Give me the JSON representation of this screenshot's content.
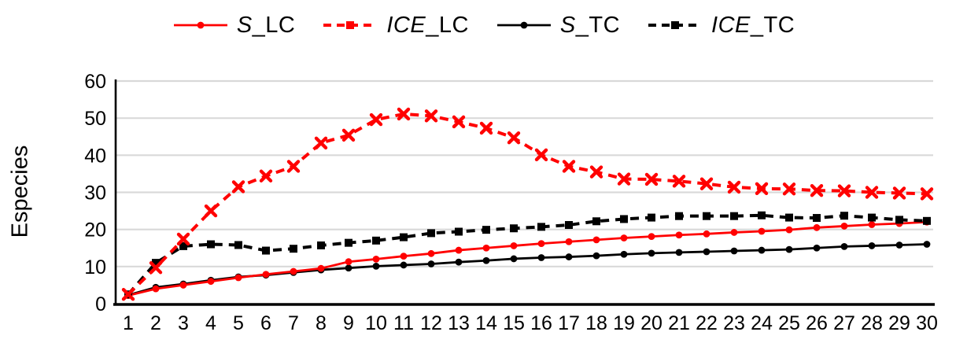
{
  "chart_data": {
    "type": "line",
    "title": "",
    "xlabel": "",
    "ylabel": "Especies",
    "ylim": [
      0,
      60
    ],
    "yticks": [
      0,
      10,
      20,
      30,
      40,
      50,
      60
    ],
    "x": [
      1,
      2,
      3,
      4,
      5,
      6,
      7,
      8,
      9,
      10,
      11,
      12,
      13,
      14,
      15,
      16,
      17,
      18,
      19,
      20,
      21,
      22,
      23,
      24,
      25,
      26,
      27,
      28,
      29,
      30
    ],
    "grid": true,
    "gridline_color": "#d9d9d9",
    "axis_color": "#000000",
    "background": "#ffffff",
    "legend_position": "top",
    "series": [
      {
        "name": "S_LC",
        "name_italic": "S",
        "name_suffix": "_LC",
        "color": "#ff0000",
        "line": "solid",
        "marker": "circle",
        "values": [
          2.2,
          4.0,
          5.0,
          6.0,
          7.0,
          7.9,
          8.7,
          9.5,
          11.3,
          12.0,
          12.8,
          13.5,
          14.4,
          15.0,
          15.6,
          16.2,
          16.7,
          17.2,
          17.7,
          18.1,
          18.5,
          18.8,
          19.2,
          19.5,
          19.9,
          20.5,
          20.9,
          21.3,
          21.6,
          22.0
        ]
      },
      {
        "name": "ICE_LC",
        "name_italic": "ICE",
        "name_suffix": "_LC",
        "color": "#ff0000",
        "line": "dashed",
        "marker": "x",
        "values": [
          2.5,
          9.7,
          17.4,
          25.0,
          31.5,
          34.4,
          37.0,
          43.3,
          45.4,
          49.6,
          51.1,
          50.6,
          49.0,
          47.3,
          44.7,
          40.1,
          37.0,
          35.5,
          33.6,
          33.5,
          33.0,
          32.3,
          31.4,
          31.0,
          30.9,
          30.5,
          30.4,
          30.0,
          29.8,
          29.6
        ]
      },
      {
        "name": "S_TC",
        "name_italic": "S",
        "name_suffix": "_TC",
        "color": "#000000",
        "line": "solid",
        "marker": "circle",
        "values": [
          2.3,
          4.4,
          5.3,
          6.3,
          7.2,
          7.7,
          8.4,
          9.1,
          9.6,
          10.1,
          10.4,
          10.7,
          11.2,
          11.6,
          12.1,
          12.4,
          12.6,
          12.9,
          13.3,
          13.6,
          13.8,
          14.0,
          14.2,
          14.4,
          14.6,
          15.0,
          15.4,
          15.6,
          15.8,
          16.0
        ]
      },
      {
        "name": "ICE_TC",
        "name_italic": "ICE",
        "name_suffix": "_TC",
        "color": "#000000",
        "line": "dashed",
        "marker": "square",
        "values": [
          2.5,
          11.0,
          15.5,
          16.0,
          15.8,
          14.3,
          14.8,
          15.7,
          16.4,
          17.0,
          17.9,
          19.0,
          19.4,
          19.9,
          20.3,
          20.7,
          21.2,
          22.2,
          22.8,
          23.2,
          23.6,
          23.6,
          23.6,
          23.8,
          23.2,
          23.1,
          23.7,
          23.2,
          22.6,
          22.3
        ]
      }
    ]
  }
}
